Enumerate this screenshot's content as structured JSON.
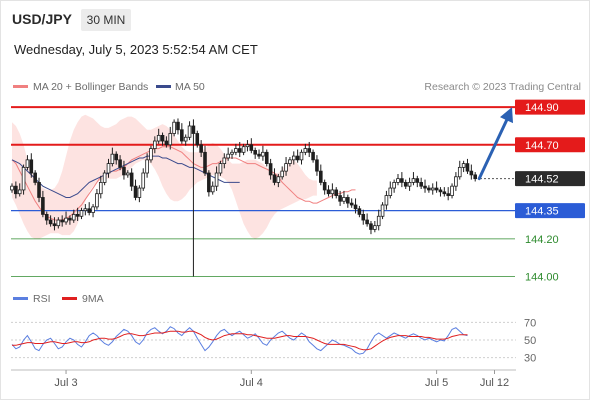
{
  "header": {
    "symbol": "USD/JPY",
    "timeframe": "30 MIN",
    "datetime": "Wednesday, July 5, 2023 5:52:54 AM CET"
  },
  "legend": {
    "ma20_label": "MA 20 + Bollinger Bands",
    "ma50_label": "MA 50",
    "credit": "Research © 2023 Trading Central",
    "rsi_label": "RSI",
    "ma9_label": "9MA"
  },
  "colors": {
    "resistance": "#e41b1b",
    "support": "#2b5cd6",
    "target": "#2e8b2e",
    "current": "#2b2b2b",
    "bands_fill": "#fde3e1",
    "ma20": "#f08080",
    "ma50": "#3a4a8c",
    "arrow": "#2b61b3",
    "rsi": "#5b7fe0",
    "rsi_ma": "#e02020"
  },
  "chart_data": [
    {
      "type": "candlestick",
      "instrument": "USD/JPY",
      "timeframe": "30 MIN",
      "ylim": [
        143.96,
        144.97
      ],
      "x_ticks": [
        {
          "label": "Jul 3",
          "index": 14
        },
        {
          "label": "Jul 4",
          "index": 62
        },
        {
          "label": "Jul 5",
          "index": 110
        },
        {
          "label": "Jul 12",
          "index": 125
        }
      ],
      "levels": [
        {
          "value": 144.9,
          "label": "144.90",
          "kind": "resistance"
        },
        {
          "value": 144.7,
          "label": "144.70",
          "kind": "resistance"
        },
        {
          "value": 144.52,
          "label": "144.52",
          "kind": "current"
        },
        {
          "value": 144.35,
          "label": "144.35",
          "kind": "support"
        },
        {
          "value": 144.2,
          "label": "144.20",
          "kind": "target"
        },
        {
          "value": 144.0,
          "label": "144.00",
          "kind": "target"
        }
      ],
      "closes": [
        144.48,
        144.44,
        144.46,
        144.58,
        144.62,
        144.55,
        144.5,
        144.42,
        144.33,
        144.3,
        144.28,
        144.27,
        144.3,
        144.29,
        144.31,
        144.3,
        144.33,
        144.32,
        144.35,
        144.36,
        144.34,
        144.37,
        144.44,
        144.5,
        144.55,
        144.6,
        144.65,
        144.62,
        144.58,
        144.54,
        144.55,
        144.48,
        144.42,
        144.47,
        144.55,
        144.62,
        144.68,
        144.72,
        144.75,
        144.72,
        144.7,
        144.76,
        144.82,
        144.78,
        144.72,
        144.74,
        144.8,
        144.76,
        144.7,
        144.66,
        144.55,
        144.45,
        144.48,
        144.55,
        144.6,
        144.63,
        144.65,
        144.66,
        144.68,
        144.66,
        144.69,
        144.7,
        144.67,
        144.65,
        144.64,
        144.66,
        144.6,
        144.54,
        144.5,
        144.53,
        144.56,
        144.6,
        144.62,
        144.64,
        144.62,
        144.66,
        144.68,
        144.66,
        144.62,
        144.56,
        144.5,
        144.46,
        144.44,
        144.46,
        144.43,
        144.4,
        144.42,
        144.39,
        144.38,
        144.36,
        144.33,
        144.3,
        144.28,
        144.25,
        144.27,
        144.32,
        144.38,
        144.43,
        144.47,
        144.5,
        144.52,
        144.5,
        144.48,
        144.5,
        144.52,
        144.5,
        144.48,
        144.47,
        144.46,
        144.47,
        144.46,
        144.45,
        144.44,
        144.43,
        144.48,
        144.53,
        144.58,
        144.6,
        144.56,
        144.54,
        144.52
      ],
      "ma20": [
        144.62,
        144.6,
        144.56,
        144.52,
        144.48,
        144.44,
        144.4,
        144.37,
        144.34,
        144.32,
        144.31,
        144.3,
        144.3,
        144.3,
        144.31,
        144.32,
        144.34,
        144.36,
        144.38,
        144.41,
        144.44,
        144.47,
        144.5,
        144.53,
        144.54,
        144.55,
        144.56,
        144.56,
        144.57,
        144.58,
        144.6,
        144.62,
        144.63,
        144.64,
        144.65,
        144.66,
        144.67,
        144.68,
        144.68,
        144.69,
        144.69,
        144.69,
        144.68,
        144.67,
        144.66,
        144.64,
        144.62,
        144.6,
        144.59,
        144.58,
        144.58,
        144.59,
        144.6,
        144.6,
        144.61,
        144.62,
        144.63,
        144.63,
        144.63,
        144.62,
        144.61,
        144.6,
        144.6,
        144.6,
        144.59,
        144.58,
        144.57,
        144.56,
        144.55,
        144.53,
        144.5,
        144.48,
        144.46,
        144.44,
        144.42,
        144.41,
        144.4,
        144.4,
        144.39,
        144.39,
        144.4,
        144.41,
        144.42,
        144.43,
        144.44,
        144.44,
        144.45,
        144.45,
        144.46,
        144.46
      ],
      "bb_upper": [
        144.82,
        144.8,
        144.76,
        144.7,
        144.62,
        144.56,
        144.52,
        144.49,
        144.47,
        144.46,
        144.46,
        144.47,
        144.5,
        144.56,
        144.64,
        144.72,
        144.78,
        144.82,
        144.85,
        144.86,
        144.85,
        144.84,
        144.82,
        144.8,
        144.79,
        144.79,
        144.8,
        144.81,
        144.83,
        144.84,
        144.85,
        144.85,
        144.84,
        144.82,
        144.8,
        144.78,
        144.78,
        144.79,
        144.8,
        144.81,
        144.8,
        144.78,
        144.75,
        144.72,
        144.69,
        144.67,
        144.66,
        144.66,
        144.66,
        144.67,
        144.68,
        144.7,
        144.71,
        144.7,
        144.68,
        144.65,
        144.62,
        144.6,
        144.6,
        144.6,
        144.61,
        144.62,
        144.62,
        144.62,
        144.61,
        144.6,
        144.58,
        144.56,
        144.55,
        144.55,
        144.57,
        144.6,
        144.62,
        144.62,
        144.6,
        144.57,
        144.54,
        144.52,
        144.51,
        144.51
      ],
      "bb_lower": [
        144.42,
        144.38,
        144.33,
        144.28,
        144.24,
        144.21,
        144.2,
        144.2,
        144.21,
        144.22,
        144.23,
        144.23,
        144.23,
        144.22,
        144.22,
        144.22,
        144.24,
        144.28,
        144.34,
        144.4,
        144.45,
        144.48,
        144.5,
        144.51,
        144.52,
        144.52,
        144.52,
        144.52,
        144.53,
        144.54,
        144.56,
        144.58,
        144.6,
        144.61,
        144.62,
        144.61,
        144.6,
        144.57,
        144.53,
        144.48,
        144.44,
        144.41,
        144.4,
        144.4,
        144.41,
        144.43,
        144.46,
        144.48,
        144.5,
        144.51,
        144.52,
        144.53,
        144.54,
        144.54,
        144.53,
        144.52,
        144.5,
        144.46,
        144.4,
        144.34,
        144.28,
        144.24,
        144.21,
        144.2,
        144.21,
        144.23,
        144.26,
        144.3,
        144.33,
        144.35,
        144.36,
        144.37,
        144.38,
        144.39,
        144.4,
        144.41,
        144.41,
        144.42,
        144.43,
        144.43
      ],
      "ma50": [
        144.62,
        144.61,
        144.6,
        144.58,
        144.56,
        144.54,
        144.52,
        144.5,
        144.48,
        144.47,
        144.46,
        144.45,
        144.44,
        144.43,
        144.42,
        144.42,
        144.43,
        144.44,
        144.46,
        144.48,
        144.5,
        144.51,
        144.52,
        144.53,
        144.54,
        144.55,
        144.56,
        144.57,
        144.58,
        144.59,
        144.6,
        144.61,
        144.62,
        144.63,
        144.63,
        144.64,
        144.64,
        144.64,
        144.64,
        144.63,
        144.63,
        144.62,
        144.61,
        144.6,
        144.6,
        144.59,
        144.58,
        144.58,
        144.57,
        144.56,
        144.55,
        144.54,
        144.53,
        144.52,
        144.51,
        144.5,
        144.5,
        144.5,
        144.5,
        144.5
      ],
      "projection": {
        "from": 144.52,
        "to": 144.9
      },
      "notes": {
        "spike_low": 144.0,
        "spike_high": 144.84
      }
    },
    {
      "type": "line",
      "title": "RSI",
      "ylim": [
        25,
        75
      ],
      "y_ticks": [
        70,
        50,
        30
      ],
      "reference_lines": [
        70,
        50,
        30
      ],
      "series": [
        {
          "name": "RSI",
          "values": [
            45,
            40,
            42,
            50,
            55,
            48,
            40,
            38,
            45,
            50,
            52,
            46,
            40,
            42,
            48,
            52,
            50,
            45,
            42,
            48,
            55,
            58,
            55,
            50,
            46,
            44,
            48,
            54,
            58,
            62,
            60,
            55,
            48,
            45,
            50,
            58,
            62,
            64,
            60,
            57,
            60,
            65,
            63,
            58,
            55,
            60,
            64,
            60,
            52,
            45,
            38,
            42,
            48,
            55,
            60,
            62,
            58,
            55,
            58,
            60,
            56,
            52,
            54,
            57,
            52,
            46,
            44,
            50,
            54,
            58,
            60,
            56,
            52,
            50,
            54,
            58,
            55,
            48,
            44,
            40,
            38,
            42,
            46,
            50,
            48,
            45,
            44,
            42,
            40,
            36,
            34,
            35,
            40,
            48,
            55,
            58,
            55,
            52,
            55,
            58,
            56,
            54,
            52,
            55,
            57,
            55,
            52,
            50,
            52,
            50,
            48,
            50,
            49,
            55,
            62,
            64,
            60,
            56,
            55
          ]
        },
        {
          "name": "9MA",
          "values": [
            44,
            44,
            45,
            46,
            47,
            47,
            46,
            46,
            46,
            47,
            48,
            48,
            47,
            46,
            46,
            47,
            48,
            48,
            47,
            47,
            48,
            50,
            51,
            52,
            52,
            51,
            51,
            52,
            54,
            56,
            57,
            57,
            56,
            55,
            55,
            56,
            57,
            58,
            58,
            58,
            59,
            60,
            60,
            60,
            59,
            59,
            60,
            60,
            58,
            56,
            53,
            51,
            50,
            51,
            53,
            55,
            56,
            57,
            57,
            57,
            57,
            56,
            56,
            55,
            54,
            53,
            52,
            52,
            52,
            53,
            54,
            55,
            55,
            54,
            54,
            54,
            54,
            53,
            52,
            50,
            48,
            46,
            45,
            45,
            45,
            45,
            45,
            44,
            43,
            42,
            40,
            39,
            39,
            40,
            43,
            46,
            49,
            51,
            53,
            54,
            55,
            55,
            55,
            54,
            54,
            54,
            54,
            53,
            53,
            52,
            51,
            51,
            51,
            52,
            54,
            55,
            56,
            56,
            56
          ]
        }
      ]
    }
  ]
}
